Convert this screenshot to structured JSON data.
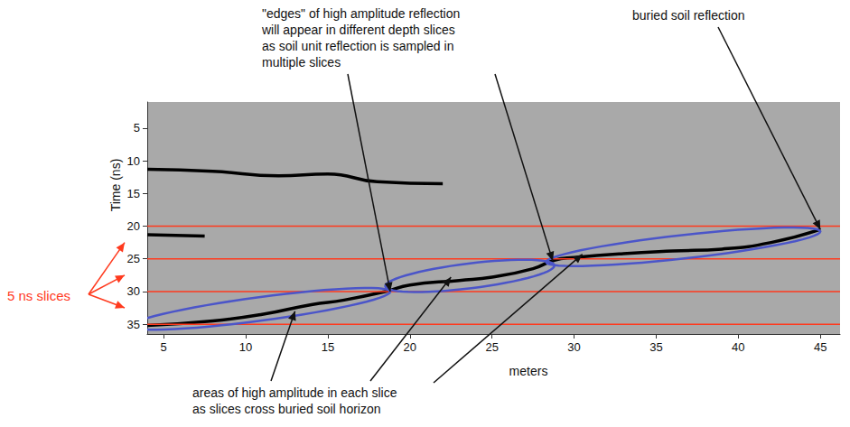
{
  "chart_data": {
    "type": "radargram",
    "xlabel": "meters",
    "ylabel": "Time (ns)",
    "xlim": [
      4,
      46.2
    ],
    "xticks": [
      5,
      10,
      15,
      20,
      25,
      30,
      35,
      40,
      45
    ],
    "ylim": [
      1,
      36.5
    ],
    "yticks": [
      5,
      10,
      15,
      20,
      25,
      30,
      35
    ],
    "grid": false,
    "reflections": [
      {
        "color": "#000000",
        "values": [
          [
            4,
            35.2
          ],
          [
            8,
            34.5
          ],
          [
            11,
            33.5
          ],
          [
            14,
            32.0
          ],
          [
            16,
            31.3
          ],
          [
            18.5,
            30.0
          ],
          [
            20,
            29.0
          ],
          [
            23,
            28.3
          ],
          [
            25,
            27.8
          ],
          [
            27.5,
            26.5
          ],
          [
            28.8,
            25.2
          ],
          [
            30,
            24.8
          ],
          [
            33,
            24.2
          ],
          [
            36,
            23.8
          ],
          [
            39,
            23.5
          ],
          [
            42,
            22.5
          ],
          [
            45,
            20.5
          ]
        ]
      },
      {
        "color": "#000000",
        "values": [
          [
            4,
            11.3
          ],
          [
            8,
            11.6
          ],
          [
            12,
            12.3
          ],
          [
            15,
            12.0
          ],
          [
            18,
            13.2
          ],
          [
            22,
            13.5
          ]
        ]
      },
      {
        "color": "#000000",
        "values": [
          [
            4,
            21.3
          ],
          [
            7.5,
            21.5
          ]
        ]
      }
    ],
    "slice_boundaries": {
      "color": "#ff3a1e",
      "values": [
        20,
        25,
        30,
        35
      ]
    },
    "highlighted_areas": {
      "color": "#4b55c9",
      "values": [
        {
          "from": [
            3,
            35.3
          ],
          "to": [
            18.8,
            30.0
          ],
          "half_width": 1.8
        },
        {
          "from": [
            18.5,
            29.2
          ],
          "to": [
            28.8,
            26.0
          ],
          "half_width": 1.9
        },
        {
          "from": [
            28.3,
            25.5
          ],
          "to": [
            45.0,
            20.8
          ],
          "half_width": 1.8
        }
      ]
    },
    "annotations": [
      {
        "text": "\"edges\" of high amplitude reflection will appear in different depth slices as soil unit reflection is sampled in multiple slices",
        "points_to": [
          [
            18.8,
            30.0
          ],
          [
            28.7,
            25.3
          ]
        ]
      },
      {
        "text": "buried soil reflection",
        "points_to": [
          [
            45,
            20.5
          ]
        ]
      },
      {
        "text": "areas of high amplitude in each slice as slices cross buried soil horizon",
        "points_to": [
          [
            13,
            33.0
          ],
          [
            22.5,
            27.8
          ],
          [
            30.5,
            24.3
          ]
        ]
      },
      {
        "text": "5 ns slices",
        "color": "#ff3a1e",
        "points_to_time": [
          22.5,
          27.5,
          32.5
        ]
      }
    ]
  }
}
